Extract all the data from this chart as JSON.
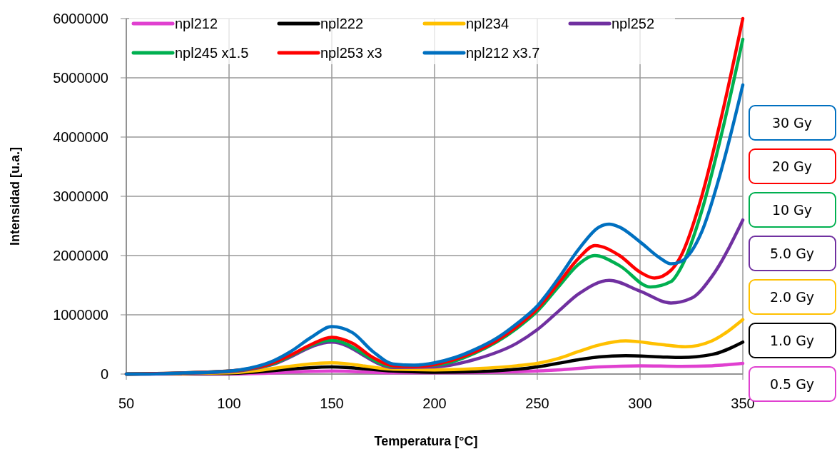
{
  "chart_data": {
    "type": "line",
    "xlabel": "Temperatura [°C]",
    "ylabel": "Intensidad [u.a.]",
    "xlim": [
      50,
      350
    ],
    "ylim": [
      0,
      6000000
    ],
    "xticks": [
      50,
      100,
      150,
      200,
      250,
      300,
      350
    ],
    "yticks": [
      0,
      1000000,
      2000000,
      3000000,
      4000000,
      5000000,
      6000000
    ],
    "grid": true,
    "legend": "top",
    "line_style": "solid",
    "annotations": [
      "30 Gy",
      "20 Gy",
      "10 Gy",
      "5.0 Gy",
      "2.0 Gy",
      "1.0 Gy",
      "0.5 Gy"
    ],
    "series": [
      {
        "name": "npl212",
        "color": "#e040d0",
        "x": [
          50,
          100,
          150,
          180,
          200,
          240,
          260,
          280,
          300,
          320,
          335,
          350
        ],
        "values": [
          0,
          0,
          50000,
          20000,
          20000,
          40000,
          70000,
          120000,
          140000,
          130000,
          140000,
          180000
        ]
      },
      {
        "name": "npl222",
        "color": "#000000",
        "x": [
          50,
          100,
          150,
          180,
          200,
          220,
          240,
          250,
          260,
          270,
          280,
          293,
          310,
          320,
          335,
          350
        ],
        "values": [
          0,
          10000,
          120000,
          50000,
          30000,
          40000,
          80000,
          120000,
          180000,
          240000,
          290000,
          310000,
          290000,
          280000,
          330000,
          540000
        ]
      },
      {
        "name": "npl234",
        "color": "#ffc000",
        "x": [
          50,
          100,
          150,
          180,
          200,
          220,
          240,
          250,
          260,
          270,
          280,
          293,
          310,
          322,
          335,
          350
        ],
        "values": [
          0,
          20000,
          190000,
          80000,
          70000,
          90000,
          140000,
          180000,
          260000,
          380000,
          490000,
          560000,
          500000,
          460000,
          560000,
          920000
        ]
      },
      {
        "name": "npl252",
        "color": "#7030a0",
        "x": [
          50,
          100,
          120,
          150,
          180,
          200,
          220,
          240,
          250,
          260,
          270,
          285,
          300,
          315,
          325,
          335,
          350
        ],
        "values": [
          0,
          40000,
          150000,
          540000,
          110000,
          120000,
          250000,
          520000,
          750000,
          1050000,
          1350000,
          1580000,
          1400000,
          1200000,
          1280000,
          1650000,
          2600000
        ]
      },
      {
        "name": "npl245 x1.5",
        "color": "#00b050",
        "x": [
          50,
          100,
          120,
          150,
          180,
          200,
          220,
          240,
          250,
          260,
          270,
          278,
          290,
          305,
          315,
          320,
          330,
          340,
          350
        ],
        "values": [
          0,
          50000,
          160000,
          570000,
          130000,
          150000,
          360000,
          770000,
          1060000,
          1460000,
          1850000,
          2000000,
          1830000,
          1470000,
          1560000,
          1800000,
          2750000,
          4100000,
          5650000
        ]
      },
      {
        "name": "npl253 x3",
        "color": "#ff0000",
        "x": [
          50,
          100,
          110,
          120,
          130,
          140,
          150,
          160,
          170,
          180,
          190,
          200,
          210,
          220,
          230,
          240,
          250,
          260,
          270,
          278,
          290,
          300,
          307,
          315,
          320,
          330,
          340,
          350
        ],
        "values": [
          0,
          50000,
          90000,
          170000,
          320000,
          500000,
          620000,
          520000,
          280000,
          140000,
          130000,
          160000,
          250000,
          380000,
          560000,
          800000,
          1100000,
          1520000,
          1950000,
          2170000,
          2000000,
          1720000,
          1620000,
          1750000,
          2000000,
          3000000,
          4400000,
          6000000
        ]
      },
      {
        "name": "npl212 x3.7",
        "color": "#0070c0",
        "x": [
          50,
          60,
          70,
          80,
          90,
          100,
          110,
          120,
          130,
          140,
          150,
          160,
          170,
          180,
          190,
          200,
          210,
          220,
          230,
          240,
          250,
          260,
          270,
          280,
          285,
          290,
          300,
          310,
          315,
          320,
          330,
          340,
          350
        ],
        "values": [
          0,
          0,
          10000,
          20000,
          30000,
          50000,
          100000,
          200000,
          380000,
          620000,
          800000,
          700000,
          380000,
          170000,
          150000,
          190000,
          280000,
          420000,
          600000,
          850000,
          1150000,
          1600000,
          2100000,
          2480000,
          2530000,
          2480000,
          2230000,
          1950000,
          1860000,
          1900000,
          2400000,
          3500000,
          4880000
        ]
      }
    ]
  }
}
